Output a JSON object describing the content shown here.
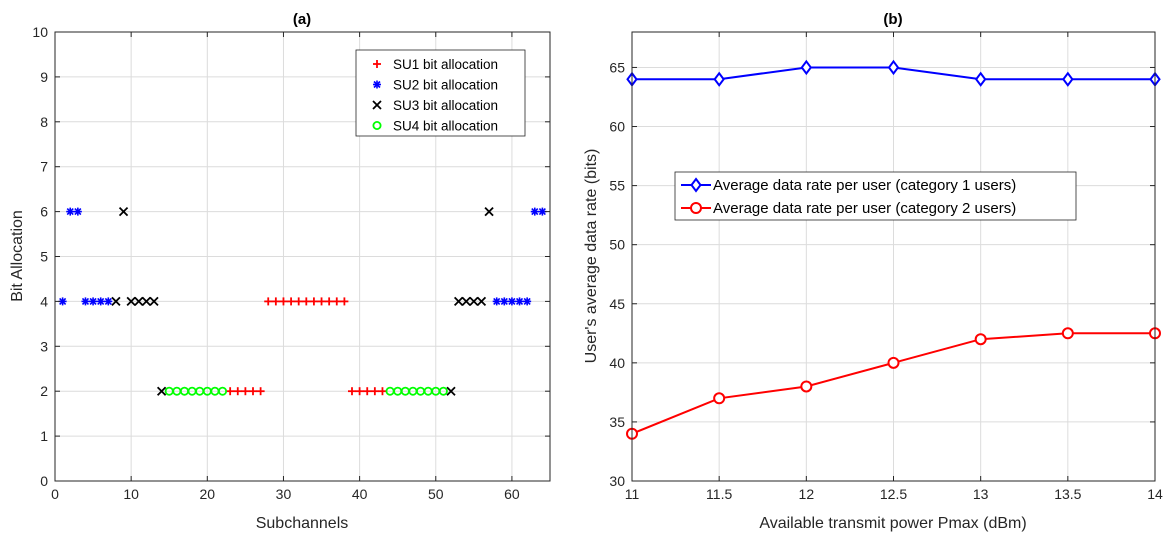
{
  "chart_data": [
    {
      "panel": "(a)",
      "type": "scatter",
      "title": "(a)",
      "xlabel": "Subchannels",
      "ylabel": "Bit Allocation",
      "xlim": [
        0,
        65
      ],
      "ylim": [
        0,
        10
      ],
      "xticks": [
        0,
        10,
        20,
        30,
        40,
        50,
        60
      ],
      "yticks": [
        0,
        1,
        2,
        3,
        4,
        5,
        6,
        7,
        8,
        9,
        10
      ],
      "grid": true,
      "legend_position": "top-right",
      "series": [
        {
          "name": "SU1 bit allocation",
          "color": "#ff0000",
          "marker": "plus",
          "points": [
            [
              23,
              2
            ],
            [
              24,
              2
            ],
            [
              25,
              2
            ],
            [
              26,
              2
            ],
            [
              27,
              2
            ],
            [
              28,
              4
            ],
            [
              29,
              4
            ],
            [
              30,
              4
            ],
            [
              31,
              4
            ],
            [
              32,
              4
            ],
            [
              33,
              4
            ],
            [
              34,
              4
            ],
            [
              35,
              4
            ],
            [
              36,
              4
            ],
            [
              37,
              4
            ],
            [
              38,
              4
            ],
            [
              39,
              2
            ],
            [
              40,
              2
            ],
            [
              41,
              2
            ],
            [
              42,
              2
            ],
            [
              43,
              2
            ]
          ]
        },
        {
          "name": "SU2 bit allocation",
          "color": "#0000ff",
          "marker": "asterisk",
          "points": [
            [
              1,
              4
            ],
            [
              2,
              6
            ],
            [
              3,
              6
            ],
            [
              4,
              4
            ],
            [
              5,
              4
            ],
            [
              6,
              4
            ],
            [
              7,
              4
            ],
            [
              58,
              4
            ],
            [
              59,
              4
            ],
            [
              60,
              4
            ],
            [
              61,
              4
            ],
            [
              62,
              4
            ],
            [
              63,
              6
            ],
            [
              64,
              6
            ]
          ]
        },
        {
          "name": "SU3 bit allocation",
          "color": "#000000",
          "marker": "x",
          "points": [
            [
              8,
              4
            ],
            [
              9,
              6
            ],
            [
              10,
              4
            ],
            [
              11,
              4
            ],
            [
              12,
              4
            ],
            [
              13,
              4
            ],
            [
              14,
              2
            ],
            [
              52,
              2
            ],
            [
              53,
              4
            ],
            [
              54,
              4
            ],
            [
              55,
              4
            ],
            [
              56,
              4
            ],
            [
              57,
              6
            ]
          ]
        },
        {
          "name": "SU4 bit allocation",
          "color": "#00ff00",
          "marker": "circle",
          "points": [
            [
              15,
              2
            ],
            [
              16,
              2
            ],
            [
              17,
              2
            ],
            [
              18,
              2
            ],
            [
              19,
              2
            ],
            [
              20,
              2
            ],
            [
              21,
              2
            ],
            [
              22,
              2
            ],
            [
              44,
              2
            ],
            [
              45,
              2
            ],
            [
              46,
              2
            ],
            [
              47,
              2
            ],
            [
              48,
              2
            ],
            [
              49,
              2
            ],
            [
              50,
              2
            ],
            [
              51,
              2
            ]
          ]
        }
      ]
    },
    {
      "panel": "(b)",
      "type": "line",
      "title": "(b)",
      "xlabel": "Available transmit power Pmax (dBm)",
      "ylabel": "User's average data rate (bits)",
      "xlim": [
        11,
        14
      ],
      "ylim": [
        30,
        68
      ],
      "xticks": [
        "11",
        "11.5",
        "12",
        "12.5",
        "13",
        "13.5",
        "14"
      ],
      "yticks": [
        30,
        35,
        40,
        45,
        50,
        55,
        60,
        65
      ],
      "grid": true,
      "legend_position": "center-left",
      "x": [
        11,
        11.5,
        12,
        12.5,
        13,
        13.5,
        14
      ],
      "series": [
        {
          "name": "Average data rate per user (category 1 users)",
          "color": "#0000ff",
          "marker": "diamond",
          "values": [
            64,
            64,
            65,
            65,
            64,
            64,
            64
          ]
        },
        {
          "name": "Average data rate per user (category 2 users)",
          "color": "#ff0000",
          "marker": "circle",
          "values": [
            34,
            37,
            38,
            40,
            42,
            42.5,
            42.5
          ]
        }
      ]
    }
  ]
}
